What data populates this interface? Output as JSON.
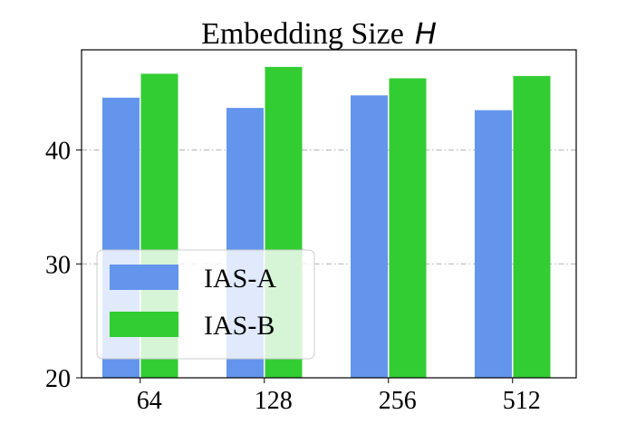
{
  "chart_data": {
    "type": "bar",
    "title": "Embedding Size",
    "title_variable": "H",
    "categories": [
      "64",
      "128",
      "256",
      "512"
    ],
    "series": [
      {
        "name": "IAS-A",
        "color": "#6495ED",
        "values": [
          44.6,
          43.7,
          44.8,
          43.5
        ]
      },
      {
        "name": "IAS-B",
        "color": "#32CD32",
        "values": [
          46.7,
          47.3,
          46.3,
          46.5
        ]
      }
    ],
    "ylim": [
      20,
      48.8
    ],
    "yticks": [
      "20",
      "30",
      "40"
    ],
    "grid": true,
    "legend": "lower-left"
  }
}
